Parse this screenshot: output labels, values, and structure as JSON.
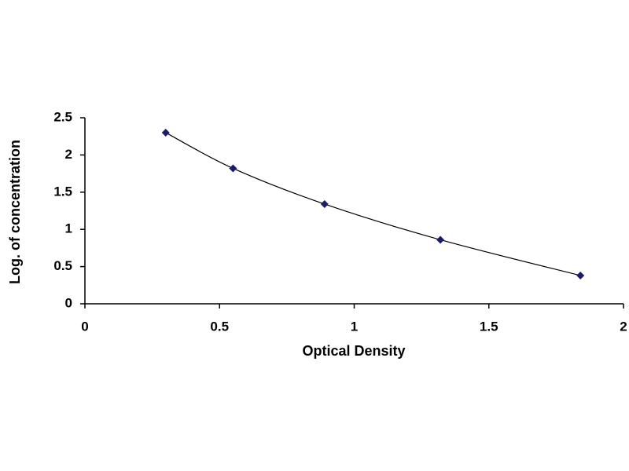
{
  "chart_data": {
    "type": "scatter",
    "x_label": "Optical Density",
    "y_label": "Log. of concentration",
    "x": [
      0.3,
      0.55,
      0.89,
      1.32,
      1.84
    ],
    "values": [
      2.3,
      1.82,
      1.34,
      0.86,
      0.38
    ],
    "color": "#1c1c6b",
    "xlim": [
      0,
      2
    ],
    "xticks": [
      0,
      0.5,
      1,
      1.5,
      2
    ],
    "ylim": [
      0,
      2.5
    ],
    "yticks": [
      0,
      0.5,
      1,
      1.5,
      2,
      2.5
    ],
    "grid": false
  }
}
